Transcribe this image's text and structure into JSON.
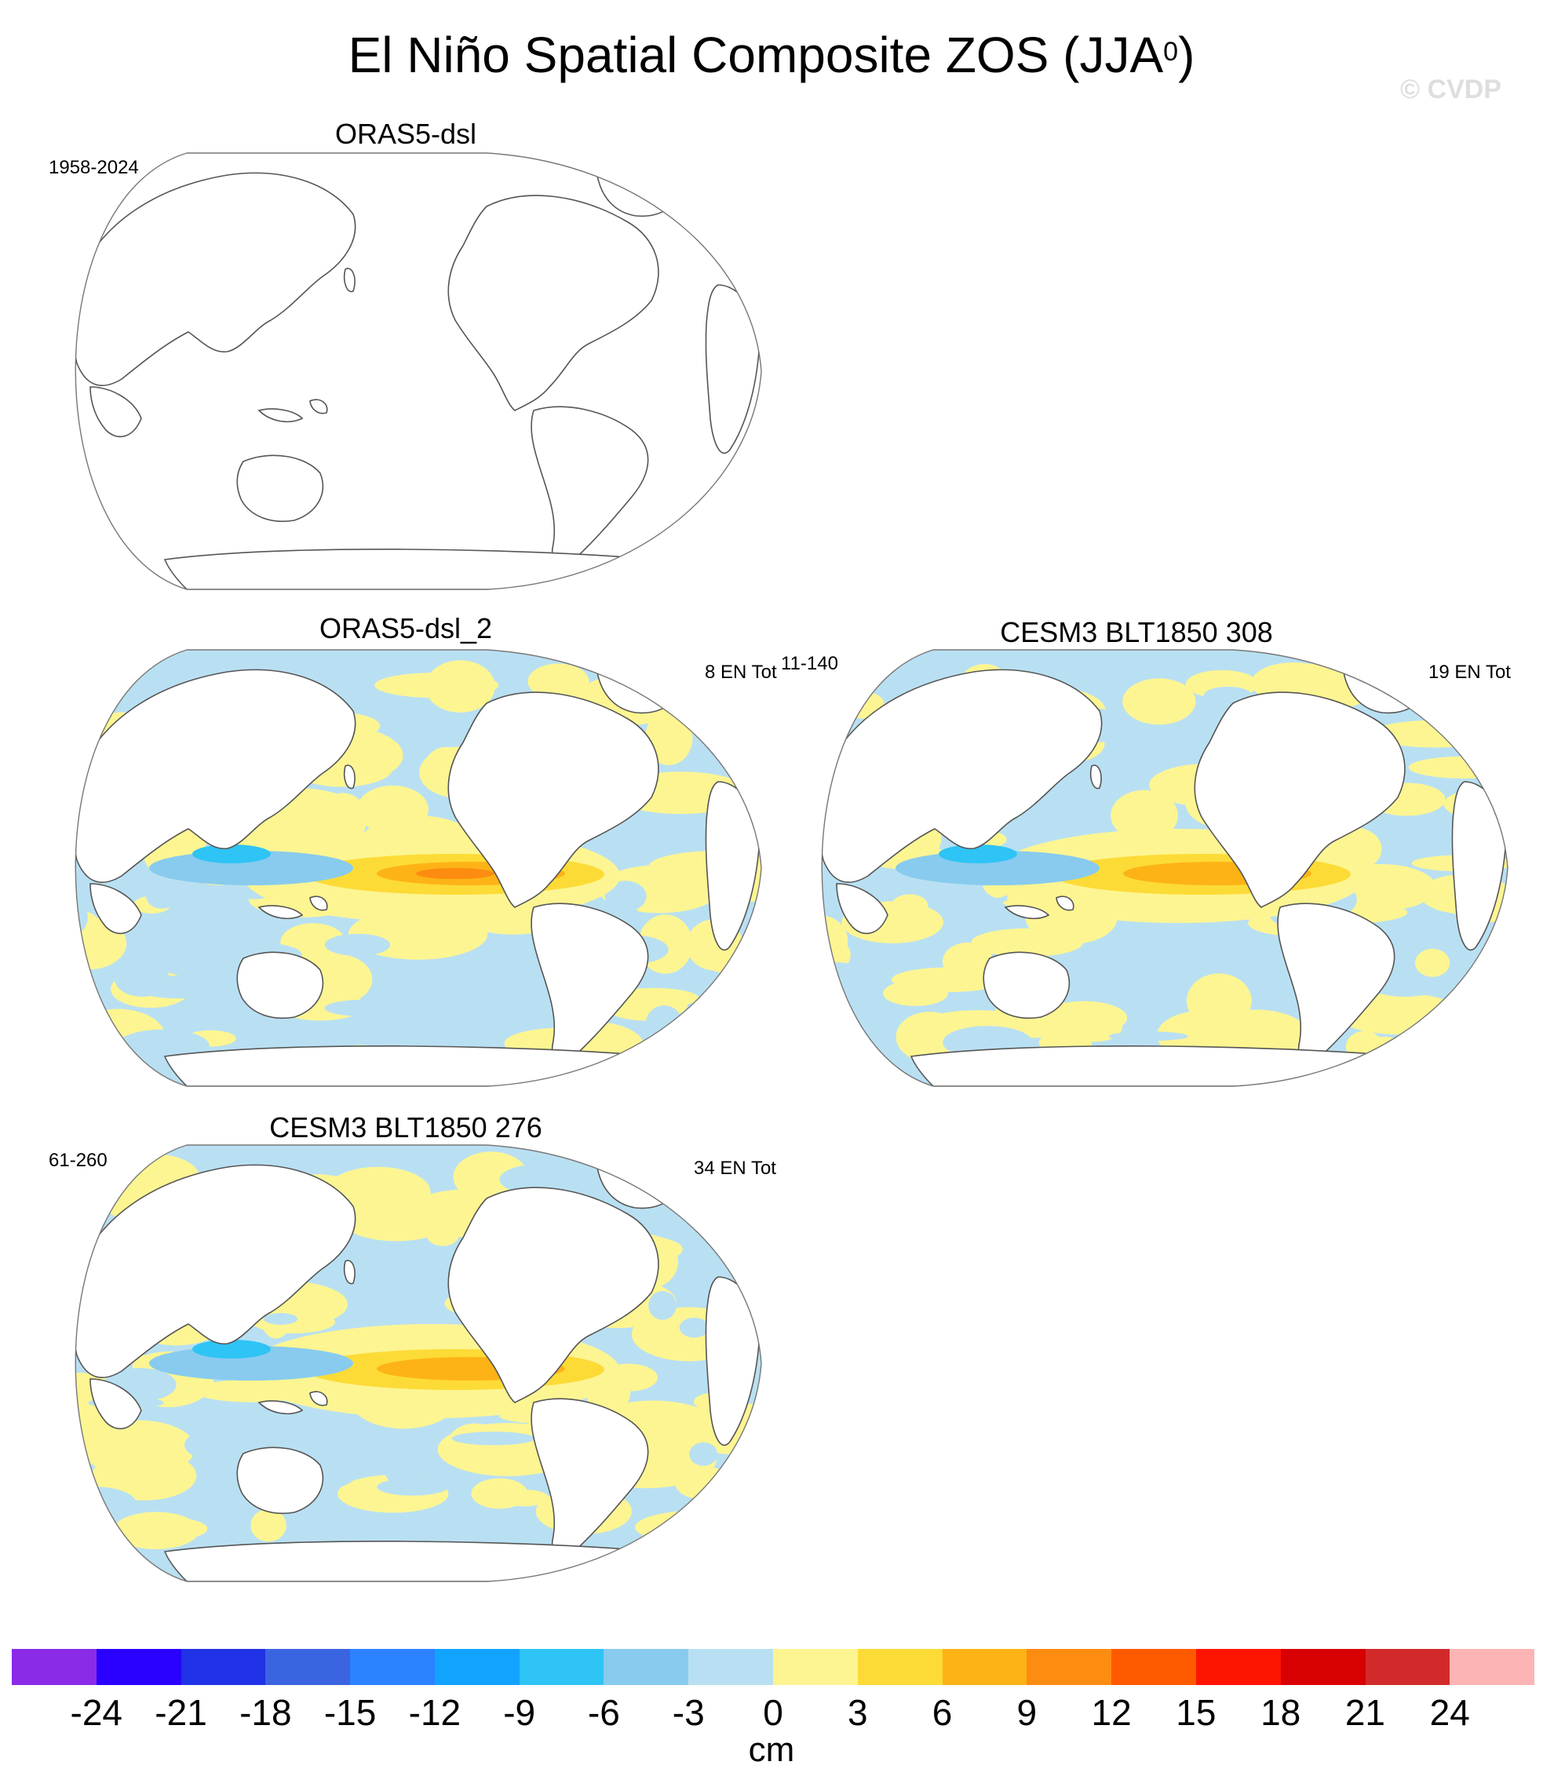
{
  "title": {
    "main": "El Niño Spatial Composite ZOS (JJA",
    "superscript": "0",
    "close": ")"
  },
  "copyright": "© CVDP",
  "panels": [
    {
      "title": "ORAS5-dsl",
      "left_note": "1958-2024",
      "right_note": "",
      "has_data": false
    },
    {
      "title": "ORAS5-dsl_2",
      "left_note": "",
      "right_note": "8 EN Tot",
      "extra_note": "11-140",
      "has_data": true
    },
    {
      "title": "CESM3 BLT1850 308",
      "left_note": "",
      "right_note": "19 EN Tot",
      "has_data": true
    },
    {
      "title": "CESM3 BLT1850 276",
      "left_note": "61-260",
      "right_note": "34 EN Tot",
      "has_data": true
    }
  ],
  "colorbar": {
    "unit": "cm",
    "colors": [
      "#8a2be8",
      "#2a00ff",
      "#1f32e6",
      "#3b64e0",
      "#2d82ff",
      "#12a3ff",
      "#2ec4f5",
      "#88cbee",
      "#b9e0f2",
      "#fdf592",
      "#fddb36",
      "#fdb316",
      "#fd8c10",
      "#ff5a00",
      "#ff1400",
      "#d80000",
      "#d22a2a",
      "#fdb4b4"
    ],
    "tick_labels": [
      "-24",
      "-21",
      "-18",
      "-15",
      "-12",
      "-9",
      "-6",
      "-3",
      "0",
      "3",
      "6",
      "9",
      "12",
      "15",
      "18",
      "21",
      "24"
    ]
  },
  "map_colors": {
    "land": "#ffffff",
    "coast": "#555555",
    "ocean_pos_light": "#fdf592",
    "ocean_neg_light": "#b9e0f2",
    "pos_mid": "#fddb36",
    "pos_strong": "#fdb316",
    "pos_max": "#fd8c10",
    "neg_mid": "#88cbee",
    "neg_strong": "#2ec4f5"
  }
}
